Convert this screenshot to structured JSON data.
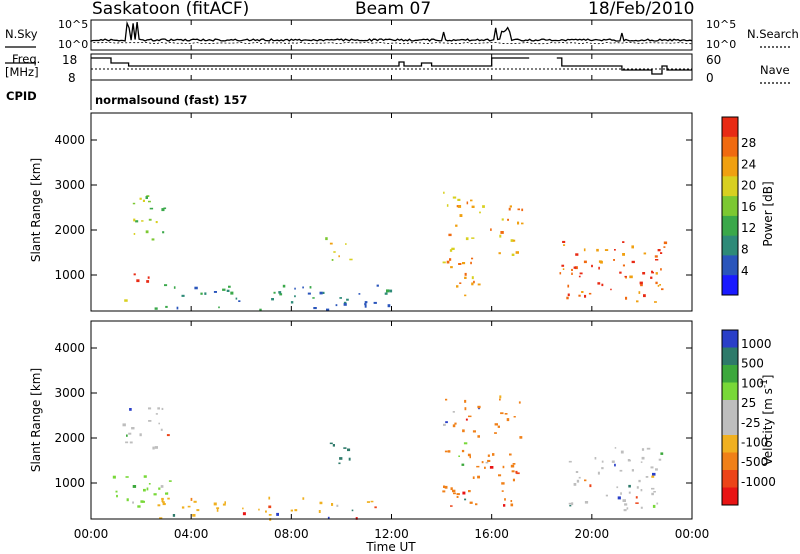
{
  "header": {
    "station": "Saskatoon (fitACF)",
    "beam": "Beam 07",
    "date": "18/Feb/2010"
  },
  "strip_labels": {
    "nsky": "N.Sky",
    "nsearch": "N.Search",
    "freq_line1": "Freq.",
    "freq_line2": "[MHz]",
    "nave": "Nave",
    "cpid": "CPID",
    "cpid_value": "normalsound (fast) 157",
    "noise_ticks_left": [
      "10^5",
      "10^0"
    ],
    "noise_ticks_right": [
      "10^5",
      "10^0"
    ],
    "freq_ticks": [
      "18",
      "8"
    ],
    "nave_ticks": [
      "60",
      "0"
    ]
  },
  "chart_data": [
    {
      "type": "heatmap",
      "name": "power",
      "ylabel": "Slant Range [km]",
      "xlabel": "Time UT",
      "xticks": [
        "00:00",
        "04:00",
        "08:00",
        "12:00",
        "16:00",
        "20:00",
        "00:00"
      ],
      "yticks": [
        "1000",
        "2000",
        "3000",
        "4000"
      ],
      "ylim": [
        200,
        4600
      ],
      "xlim_hours": [
        0,
        24
      ],
      "colorbar": {
        "label": "Power [dB]",
        "ticks": [
          "28",
          "24",
          "20",
          "16",
          "12",
          "8",
          "4"
        ],
        "range": [
          0,
          30
        ],
        "colors": [
          "#1a1aff",
          "#2a55bb",
          "#2e8a78",
          "#3aa84a",
          "#7cc832",
          "#d8d020",
          "#f0a010",
          "#f06a10",
          "#e82a14"
        ]
      },
      "echo_regions": [
        {
          "t0": 0.8,
          "t1": 1.6,
          "r0": 400,
          "r1": 600,
          "level": 5
        },
        {
          "t0": 1.6,
          "t1": 2.5,
          "r0": 800,
          "r1": 1300,
          "level": 9
        },
        {
          "t0": 1.2,
          "t1": 3.2,
          "r0": 1800,
          "r1": 2800,
          "level": 4
        },
        {
          "t0": 2.5,
          "t1": 12.0,
          "r0": 220,
          "r1": 800,
          "level": 2
        },
        {
          "t0": 9.3,
          "t1": 10.5,
          "r0": 1300,
          "r1": 1900,
          "level": 5
        },
        {
          "t0": 14.0,
          "t1": 15.5,
          "r0": 500,
          "r1": 3000,
          "level": 6
        },
        {
          "t0": 15.6,
          "t1": 17.2,
          "r0": 1400,
          "r1": 2600,
          "level": 6
        },
        {
          "t0": 18.7,
          "t1": 23.0,
          "r0": 400,
          "r1": 1800,
          "level": 7
        },
        {
          "t0": 19.0,
          "t1": 20.3,
          "r0": 800,
          "r1": 1200,
          "level": 9
        },
        {
          "t0": 21.0,
          "t1": 22.5,
          "r0": 850,
          "r1": 1200,
          "level": 8
        }
      ]
    },
    {
      "type": "heatmap",
      "name": "velocity",
      "ylabel": "Slant Range [km]",
      "xlabel": "Time UT",
      "xticks": [
        "00:00",
        "04:00",
        "08:00",
        "12:00",
        "16:00",
        "20:00",
        "00:00"
      ],
      "yticks": [
        "1000",
        "2000",
        "3000",
        "4000"
      ],
      "ylim": [
        200,
        4600
      ],
      "xlim_hours": [
        0,
        24
      ],
      "colorbar": {
        "label": "Velocity [m s^-1]",
        "ticks": [
          "1000",
          "500",
          "100",
          "25",
          "-25",
          "-100",
          "-500",
          "-1000"
        ],
        "range": [
          -1000,
          1000
        ],
        "colors": [
          "#2a3fc8",
          "#2e7a6a",
          "#3ca83c",
          "#78d838",
          "#bebebe",
          "#bebebe",
          "#f0b020",
          "#f08018",
          "#ec4418",
          "#e81414"
        ]
      },
      "echo_regions": [
        {
          "t0": 0.8,
          "t1": 3.2,
          "r0": 400,
          "r1": 1300,
          "color": "#78d838"
        },
        {
          "t0": 1.2,
          "t1": 3.2,
          "r0": 1800,
          "r1": 2800,
          "color": "#bebebe"
        },
        {
          "t0": 2.5,
          "t1": 12.0,
          "r0": 220,
          "r1": 700,
          "color": "#f0b020"
        },
        {
          "t0": 9.3,
          "t1": 10.5,
          "r0": 1300,
          "r1": 1900,
          "color": "#2e7a6a"
        },
        {
          "t0": 14.0,
          "t1": 17.2,
          "r0": 500,
          "r1": 3000,
          "color": "#f08018"
        },
        {
          "t0": 18.7,
          "t1": 23.0,
          "r0": 400,
          "r1": 1800,
          "color": "#bebebe"
        }
      ]
    }
  ]
}
